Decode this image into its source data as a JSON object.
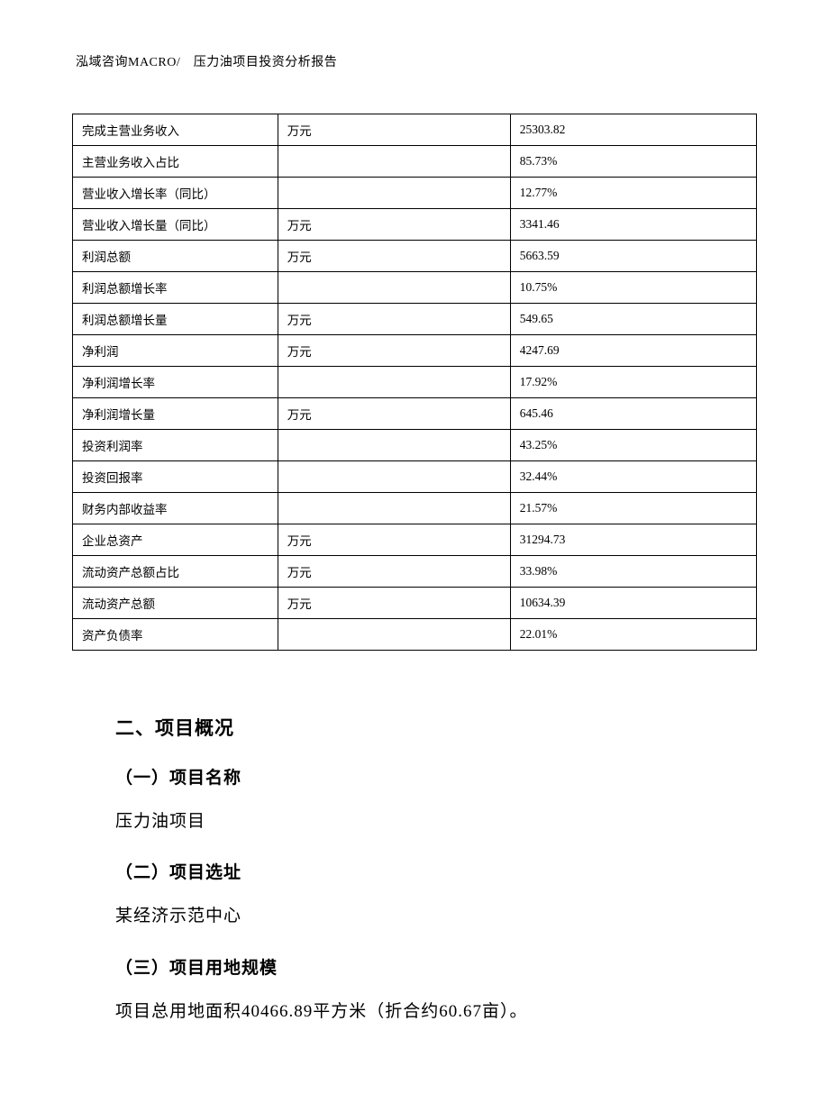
{
  "header": {
    "text": "泓域咨询MACRO/　压力油项目投资分析报告"
  },
  "table": {
    "rows": [
      {
        "label": "完成主营业务收入",
        "unit": "万元",
        "value": "25303.82"
      },
      {
        "label": "主营业务收入占比",
        "unit": "",
        "value": "85.73%"
      },
      {
        "label": "营业收入增长率（同比）",
        "unit": "",
        "value": "12.77%"
      },
      {
        "label": "营业收入增长量（同比）",
        "unit": "万元",
        "value": "3341.46"
      },
      {
        "label": "利润总额",
        "unit": "万元",
        "value": "5663.59"
      },
      {
        "label": "利润总额增长率",
        "unit": "",
        "value": "10.75%"
      },
      {
        "label": "利润总额增长量",
        "unit": "万元",
        "value": "549.65"
      },
      {
        "label": "净利润",
        "unit": "万元",
        "value": "4247.69"
      },
      {
        "label": "净利润增长率",
        "unit": "",
        "value": "17.92%"
      },
      {
        "label": "净利润增长量",
        "unit": "万元",
        "value": "645.46"
      },
      {
        "label": "投资利润率",
        "unit": "",
        "value": "43.25%"
      },
      {
        "label": "投资回报率",
        "unit": "",
        "value": "32.44%"
      },
      {
        "label": "财务内部收益率",
        "unit": "",
        "value": "21.57%"
      },
      {
        "label": "企业总资产",
        "unit": "万元",
        "value": "31294.73"
      },
      {
        "label": "流动资产总额占比",
        "unit": "万元",
        "value": "33.98%"
      },
      {
        "label": "流动资产总额",
        "unit": "万元",
        "value": "10634.39"
      },
      {
        "label": "资产负债率",
        "unit": "",
        "value": "22.01%"
      }
    ]
  },
  "sections": {
    "heading2": "二、项目概况",
    "sub1": {
      "title": "（一）项目名称",
      "body": "压力油项目"
    },
    "sub2": {
      "title": "（二）项目选址",
      "body": "某经济示范中心"
    },
    "sub3": {
      "title": "（三）项目用地规模",
      "body": "项目总用地面积40466.89平方米（折合约60.67亩）。"
    }
  }
}
